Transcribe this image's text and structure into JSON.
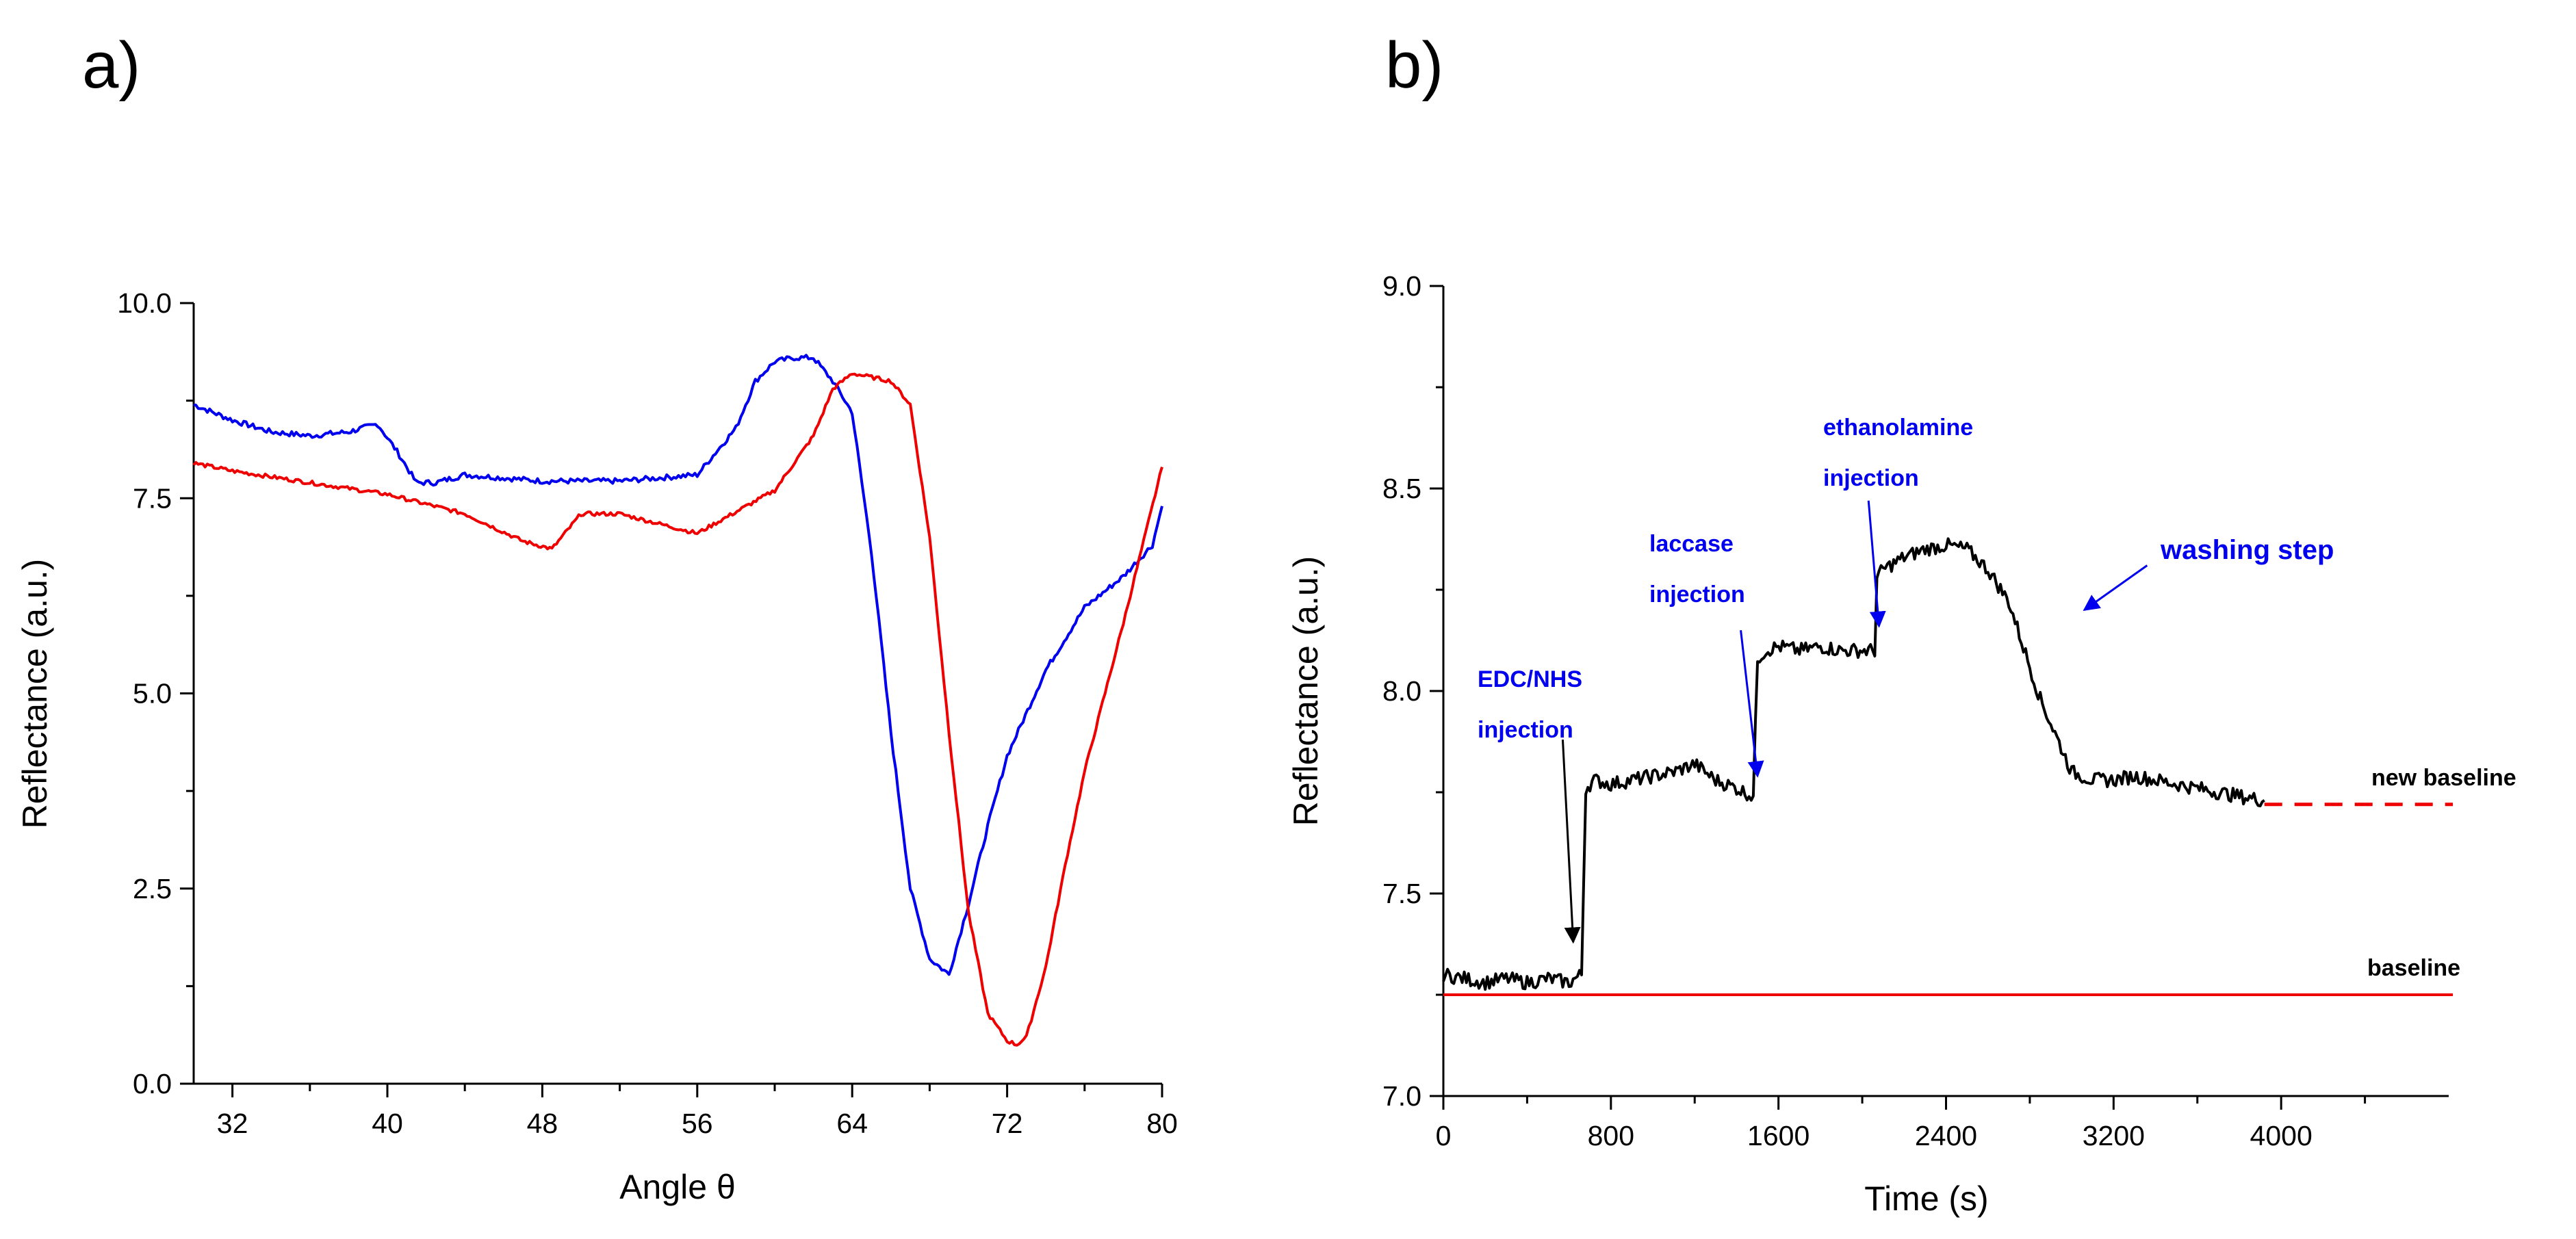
{
  "panel_a_label": "a)",
  "panel_b_label": "b)",
  "colors": {
    "blue": "#0000ee",
    "red": "#ee0000",
    "black": "#000000",
    "annot_blue": "#0000ee"
  },
  "chart_data": [
    {
      "type": "line",
      "panel": "a)",
      "title": "",
      "xlabel": "Angle θ",
      "ylabel": "Reflectance (a.u.)",
      "xlim": [
        30,
        80
      ],
      "ylim": [
        0,
        10
      ],
      "xticks": [
        32,
        40,
        48,
        56,
        64,
        72,
        80
      ],
      "yticks": [
        "0.0",
        "2.5",
        "5.0",
        "7.5",
        "10.0"
      ],
      "series": [
        {
          "name": "blue curve",
          "color": "#0000ee",
          "x": [
            30,
            32,
            34,
            36,
            38,
            39.5,
            40.5,
            41.5,
            42.5,
            44,
            48,
            52,
            56,
            58,
            59,
            60,
            61,
            62,
            63,
            64,
            65,
            66,
            67,
            68,
            69,
            70,
            71,
            72,
            74,
            76,
            78,
            79.5,
            80
          ],
          "y": [
            8.7,
            8.5,
            8.35,
            8.3,
            8.35,
            8.45,
            8.1,
            7.7,
            7.7,
            7.8,
            7.72,
            7.72,
            7.8,
            8.4,
            9.0,
            9.25,
            9.3,
            9.3,
            9.0,
            8.6,
            6.8,
            4.5,
            2.5,
            1.6,
            1.4,
            2.3,
            3.3,
            4.2,
            5.3,
            6.1,
            6.5,
            6.9,
            7.4
          ]
        },
        {
          "name": "red curve",
          "color": "#ee0000",
          "x": [
            30,
            32,
            36,
            40,
            44,
            47,
            48.5,
            50,
            52,
            56,
            60,
            62,
            63,
            64,
            65,
            66,
            67,
            68,
            69,
            70,
            71,
            72,
            72.5,
            73,
            74,
            75,
            76,
            78,
            80
          ],
          "y": [
            7.95,
            7.85,
            7.7,
            7.55,
            7.3,
            6.95,
            6.85,
            7.3,
            7.3,
            7.05,
            7.6,
            8.3,
            8.9,
            9.1,
            9.05,
            9.0,
            8.7,
            7.0,
            4.5,
            2.2,
            0.9,
            0.55,
            0.5,
            0.6,
            1.5,
            2.8,
            4.0,
            5.9,
            7.9
          ]
        }
      ]
    },
    {
      "type": "line",
      "panel": "b)",
      "title": "",
      "xlabel": "Time (s)",
      "ylabel": "Reflectance (a.u.)",
      "xlim": [
        0,
        4800
      ],
      "ylim": [
        7.0,
        9.0
      ],
      "xticks": [
        "0",
        "800",
        "1600",
        "2400",
        "3200",
        "4000"
      ],
      "yticks": [
        "7.0",
        "7.5",
        "8.0",
        "8.5",
        "9.0"
      ],
      "series": [
        {
          "name": "signal",
          "color": "#000000",
          "x": [
            0,
            100,
            200,
            300,
            400,
            500,
            600,
            660,
            680,
            720,
            800,
            900,
            1000,
            1100,
            1200,
            1300,
            1400,
            1480,
            1500,
            1540,
            1600,
            1700,
            1800,
            1900,
            2000,
            2060,
            2070,
            2100,
            2200,
            2300,
            2400,
            2500,
            2600,
            2700,
            2750,
            2800,
            2850,
            2900,
            2950,
            3000,
            3100,
            3200,
            3300,
            3400,
            3500,
            3600,
            3700,
            3800,
            3920
          ],
          "y": [
            7.3,
            7.29,
            7.28,
            7.29,
            7.28,
            7.29,
            7.28,
            7.3,
            7.76,
            7.78,
            7.77,
            7.78,
            7.79,
            7.8,
            7.82,
            7.78,
            7.76,
            7.74,
            8.08,
            8.1,
            8.11,
            8.1,
            8.11,
            8.1,
            8.1,
            8.1,
            8.28,
            8.3,
            8.33,
            8.35,
            8.36,
            8.35,
            8.3,
            8.22,
            8.14,
            8.06,
            7.98,
            7.92,
            7.86,
            7.8,
            7.78,
            7.78,
            7.79,
            7.78,
            7.77,
            7.76,
            7.75,
            7.74,
            7.73
          ]
        },
        {
          "name": "baseline",
          "color": "#ee0000",
          "style": "solid",
          "x": [
            0,
            4820
          ],
          "y": [
            7.25,
            7.25
          ]
        },
        {
          "name": "new baseline",
          "color": "#ee0000",
          "style": "dashed",
          "x": [
            3920,
            4820
          ],
          "y": [
            7.72,
            7.72
          ]
        }
      ],
      "annotations": [
        {
          "text": [
            "EDC/NHS",
            "injection"
          ],
          "color": "#0000ee",
          "arrow_color": "#000000",
          "arrow_from": [
            570,
            7.88
          ],
          "arrow_to": [
            620,
            7.38
          ]
        },
        {
          "text": [
            "laccase",
            "injection"
          ],
          "color": "#0000ee",
          "arrow_color": "#0000ee",
          "arrow_from": [
            1420,
            8.15
          ],
          "arrow_to": [
            1500,
            7.79
          ]
        },
        {
          "text": [
            "ethanolamine",
            "injection"
          ],
          "color": "#0000ee",
          "arrow_color": "#0000ee",
          "arrow_from": [
            2030,
            8.47
          ],
          "arrow_to": [
            2080,
            8.16
          ]
        },
        {
          "text": [
            "washing step"
          ],
          "color": "#0000ee",
          "arrow_color": "#0000ee",
          "arrow_from": [
            3360,
            8.31
          ],
          "arrow_to": [
            3060,
            8.2
          ]
        },
        {
          "text": [
            "new baseline"
          ],
          "color": "#000000"
        },
        {
          "text": [
            "baseline"
          ],
          "color": "#000000"
        }
      ]
    }
  ]
}
